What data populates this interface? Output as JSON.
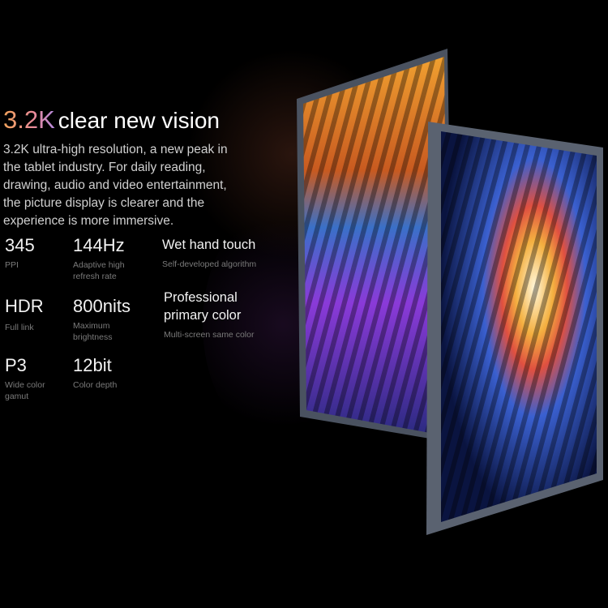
{
  "headline": {
    "accent": "3.2K",
    "rest": "clear new vision"
  },
  "description": "3.2K ultra-high resolution, a new peak in the tablet industry. For daily reading, drawing, audio and video entertainment, the picture display is clearer and the experience is more immersive.",
  "specs": [
    {
      "value": "345",
      "label": "PPI"
    },
    {
      "value": "144Hz",
      "label": "Adaptive high refresh rate"
    },
    {
      "value": "Wet hand touch",
      "label": "Self-developed algorithm"
    },
    {
      "value": "HDR",
      "label": "Full link"
    },
    {
      "value": "800nits",
      "label": "Maximum brightness"
    },
    {
      "value": "Professional primary color",
      "label": "Multi-screen same color"
    },
    {
      "value": "P3",
      "label": "Wide color gamut"
    },
    {
      "value": "12bit",
      "label": "Color depth"
    }
  ],
  "colors": {
    "background": "#000000",
    "accent_gradient": [
      "#f2a35b",
      "#e88a9a",
      "#b58ae0"
    ],
    "frame": "#5a6270"
  }
}
